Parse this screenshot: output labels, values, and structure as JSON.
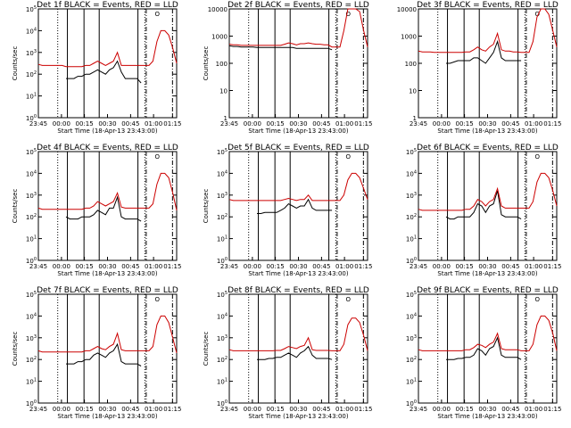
{
  "chart_data": [
    {
      "type": "line",
      "title": "Det 1f  BLACK = Events, RED = LLD",
      "xlabel": "Start Time (18-Apr-13 23:43:00)",
      "ylabel": "Counts/sec",
      "ylim_exp": [
        0,
        5
      ],
      "ytick_labels": [
        "10^0",
        "10^1",
        "10^2",
        "10^3",
        "10^4",
        "10^5"
      ],
      "series": [
        {
          "color": "#000000",
          "values": [
            null,
            null,
            null,
            null,
            null,
            null,
            null,
            1.8,
            1.8,
            1.8,
            1.9,
            1.9,
            2.0,
            2.0,
            2.1,
            2.2,
            2.1,
            2.0,
            2.2,
            2.3,
            2.6,
            2.1,
            1.8,
            1.8,
            1.8,
            1.8,
            1.6,
            null,
            null,
            null,
            null,
            null,
            null,
            null,
            null,
            null
          ]
        },
        {
          "color": "#cc0000",
          "values": [
            2.45,
            2.4,
            2.4,
            2.4,
            2.4,
            2.4,
            2.4,
            2.35,
            2.35,
            2.35,
            2.35,
            2.35,
            2.4,
            2.4,
            2.5,
            2.6,
            2.5,
            2.4,
            2.5,
            2.6,
            3.0,
            2.4,
            2.4,
            2.4,
            2.4,
            2.4,
            2.4,
            2.4,
            2.4,
            2.6,
            3.5,
            4.0,
            4.0,
            3.8,
            3.2,
            2.5
          ]
        }
      ]
    },
    {
      "type": "line",
      "title": "Det 2f  BLACK = Events, RED = LLD",
      "xlabel": "Start Time (18-Apr-13 23:43:00)",
      "ylabel": "Counts/sec",
      "ylim_exp": [
        0,
        4
      ],
      "ytick_labels": [
        "1",
        "10",
        "100",
        "1000",
        "10000"
      ],
      "series": [
        {
          "color": "#000000",
          "values": [
            2.65,
            2.62,
            2.62,
            2.6,
            2.6,
            2.6,
            2.6,
            2.58,
            2.58,
            2.58,
            2.58,
            2.58,
            2.58,
            2.58,
            2.58,
            2.58,
            2.58,
            2.55,
            2.55,
            2.55,
            2.55,
            2.55,
            2.55,
            2.55,
            2.55,
            2.55,
            2.5,
            null,
            null,
            null,
            null,
            null,
            null,
            null,
            null,
            null
          ]
        },
        {
          "color": "#cc0000",
          "values": [
            2.7,
            2.68,
            2.68,
            2.66,
            2.66,
            2.66,
            2.66,
            2.66,
            2.66,
            2.66,
            2.66,
            2.66,
            2.66,
            2.66,
            2.7,
            2.75,
            2.72,
            2.68,
            2.72,
            2.72,
            2.75,
            2.72,
            2.7,
            2.7,
            2.68,
            2.68,
            2.6,
            2.6,
            2.6,
            3.2,
            4.0,
            4.2,
            4.2,
            3.9,
            3.2,
            2.6
          ]
        }
      ]
    },
    {
      "type": "line",
      "title": "Det 3f  BLACK = Events, RED = LLD",
      "xlabel": "Start Time (18-Apr-13 23:43:00)",
      "ylabel": "",
      "ylim_exp": [
        0,
        4
      ],
      "ytick_labels": [
        "1",
        "10",
        "100",
        "1000",
        "10000"
      ],
      "series": [
        {
          "color": "#000000",
          "values": [
            null,
            null,
            null,
            null,
            null,
            null,
            null,
            2.0,
            2.0,
            2.05,
            2.1,
            2.1,
            2.1,
            2.1,
            2.2,
            2.2,
            2.1,
            2.0,
            2.2,
            2.4,
            2.8,
            2.2,
            2.1,
            2.1,
            2.1,
            2.1,
            2.1,
            null,
            null,
            null,
            null,
            null,
            null,
            null,
            null,
            null
          ]
        },
        {
          "color": "#cc0000",
          "values": [
            2.45,
            2.42,
            2.42,
            2.42,
            2.4,
            2.4,
            2.4,
            2.4,
            2.4,
            2.4,
            2.4,
            2.4,
            2.42,
            2.42,
            2.5,
            2.6,
            2.5,
            2.45,
            2.6,
            2.7,
            3.1,
            2.5,
            2.45,
            2.45,
            2.42,
            2.42,
            2.4,
            2.4,
            2.4,
            2.8,
            3.7,
            4.1,
            4.1,
            3.8,
            3.2,
            2.6
          ]
        }
      ]
    },
    {
      "type": "line",
      "title": "Det 4f  BLACK = Events, RED = LLD",
      "xlabel": "Start Time (18-Apr-13 23:43:00)",
      "ylabel": "Counts/sec",
      "ylim_exp": [
        0,
        5
      ],
      "ytick_labels": [
        "10^0",
        "10^1",
        "10^2",
        "10^3",
        "10^4",
        "10^5"
      ],
      "series": [
        {
          "color": "#000000",
          "values": [
            null,
            null,
            null,
            null,
            null,
            null,
            null,
            2.0,
            1.9,
            1.9,
            1.9,
            2.0,
            2.0,
            2.0,
            2.1,
            2.3,
            2.2,
            2.1,
            2.4,
            2.4,
            2.9,
            2.0,
            1.9,
            1.9,
            1.9,
            1.9,
            1.8,
            null,
            null,
            null,
            null,
            null,
            null,
            null,
            null,
            null
          ]
        },
        {
          "color": "#cc0000",
          "values": [
            2.4,
            2.35,
            2.35,
            2.35,
            2.35,
            2.35,
            2.35,
            2.35,
            2.35,
            2.35,
            2.35,
            2.35,
            2.4,
            2.4,
            2.5,
            2.7,
            2.6,
            2.5,
            2.6,
            2.7,
            3.1,
            2.45,
            2.4,
            2.4,
            2.4,
            2.4,
            2.4,
            2.4,
            2.4,
            2.6,
            3.5,
            4.0,
            4.0,
            3.8,
            3.1,
            2.3
          ]
        }
      ]
    },
    {
      "type": "line",
      "title": "Det 5f  BLACK = Events, RED = LLD",
      "xlabel": "Start Time (18-Apr-13 23:43:00)",
      "ylabel": "Counts/sec",
      "ylim_exp": [
        0,
        5
      ],
      "ytick_labels": [
        "10^0",
        "10^1",
        "10^2",
        "10^3",
        "10^4",
        "10^5"
      ],
      "series": [
        {
          "color": "#000000",
          "values": [
            null,
            null,
            null,
            null,
            null,
            null,
            null,
            2.15,
            2.15,
            2.2,
            2.2,
            2.2,
            2.2,
            2.3,
            2.4,
            2.6,
            2.5,
            2.4,
            2.5,
            2.5,
            2.8,
            2.4,
            2.3,
            2.3,
            2.3,
            2.3,
            2.3,
            null,
            null,
            null,
            null,
            null,
            null,
            null,
            null,
            null
          ]
        },
        {
          "color": "#cc0000",
          "values": [
            2.8,
            2.75,
            2.75,
            2.75,
            2.75,
            2.75,
            2.75,
            2.75,
            2.75,
            2.75,
            2.75,
            2.75,
            2.75,
            2.75,
            2.8,
            2.85,
            2.8,
            2.75,
            2.8,
            2.8,
            3.0,
            2.75,
            2.75,
            2.75,
            2.75,
            2.75,
            2.75,
            2.75,
            2.75,
            3.0,
            3.7,
            4.0,
            4.0,
            3.8,
            3.3,
            2.8
          ]
        }
      ]
    },
    {
      "type": "line",
      "title": "Det 6f  BLACK = Events, RED = LLD",
      "xlabel": "Start Time (18-Apr-13 23:43:00)",
      "ylabel": "",
      "ylim_exp": [
        0,
        5
      ],
      "ytick_labels": [
        "10^0",
        "10^1",
        "10^2",
        "10^3",
        "10^4",
        "10^5"
      ],
      "series": [
        {
          "color": "#000000",
          "values": [
            null,
            null,
            null,
            null,
            null,
            null,
            null,
            2.0,
            1.9,
            1.9,
            2.0,
            2.0,
            2.0,
            2.0,
            2.2,
            2.6,
            2.5,
            2.2,
            2.5,
            2.6,
            3.2,
            2.1,
            2.0,
            2.0,
            2.0,
            2.0,
            1.9,
            null,
            null,
            null,
            null,
            null,
            null,
            null,
            null,
            null
          ]
        },
        {
          "color": "#cc0000",
          "values": [
            2.35,
            2.3,
            2.3,
            2.3,
            2.3,
            2.3,
            2.3,
            2.3,
            2.3,
            2.3,
            2.3,
            2.3,
            2.35,
            2.35,
            2.5,
            2.8,
            2.7,
            2.5,
            2.7,
            2.8,
            3.3,
            2.5,
            2.4,
            2.4,
            2.4,
            2.4,
            2.4,
            2.4,
            2.4,
            2.7,
            3.6,
            4.0,
            4.0,
            3.8,
            3.2,
            2.5
          ]
        }
      ]
    },
    {
      "type": "line",
      "title": "Det 7f  BLACK = Events, RED = LLD",
      "xlabel": "Start Time (18-Apr-13 23:43:00)",
      "ylabel": "Counts/sec",
      "ylim_exp": [
        0,
        5
      ],
      "ytick_labels": [
        "10^0",
        "10^1",
        "10^2",
        "10^3",
        "10^4",
        "10^5"
      ],
      "series": [
        {
          "color": "#000000",
          "values": [
            null,
            null,
            null,
            null,
            null,
            null,
            null,
            1.8,
            1.8,
            1.8,
            1.9,
            1.9,
            2.0,
            2.0,
            2.2,
            2.3,
            2.2,
            2.1,
            2.3,
            2.4,
            2.7,
            1.9,
            1.8,
            1.8,
            1.8,
            1.8,
            1.7,
            null,
            null,
            null,
            null,
            null,
            null,
            null,
            null,
            null
          ]
        },
        {
          "color": "#cc0000",
          "values": [
            2.4,
            2.35,
            2.35,
            2.35,
            2.35,
            2.35,
            2.35,
            2.35,
            2.35,
            2.35,
            2.35,
            2.35,
            2.4,
            2.4,
            2.5,
            2.6,
            2.5,
            2.45,
            2.6,
            2.7,
            3.2,
            2.45,
            2.4,
            2.4,
            2.4,
            2.4,
            2.4,
            2.4,
            2.4,
            2.6,
            3.6,
            4.0,
            4.0,
            3.7,
            3.0,
            2.3
          ]
        }
      ]
    },
    {
      "type": "line",
      "title": "Det 8f  BLACK = Events, RED = LLD",
      "xlabel": "Start Time (18-Apr-13 23:43:00)",
      "ylabel": "Counts/sec",
      "ylim_exp": [
        0,
        5
      ],
      "ytick_labels": [
        "10^0",
        "10^1",
        "10^2",
        "10^3",
        "10^4",
        "10^5"
      ],
      "series": [
        {
          "color": "#000000",
          "values": [
            null,
            null,
            null,
            null,
            null,
            null,
            null,
            2.0,
            2.0,
            2.0,
            2.05,
            2.05,
            2.1,
            2.1,
            2.2,
            2.3,
            2.2,
            2.1,
            2.3,
            2.4,
            2.6,
            2.2,
            2.05,
            2.05,
            2.05,
            2.05,
            2.0,
            null,
            null,
            null,
            null,
            null,
            null,
            null,
            null,
            null
          ]
        },
        {
          "color": "#cc0000",
          "values": [
            2.45,
            2.4,
            2.4,
            2.4,
            2.4,
            2.4,
            2.4,
            2.4,
            2.4,
            2.4,
            2.4,
            2.4,
            2.42,
            2.42,
            2.5,
            2.6,
            2.55,
            2.5,
            2.6,
            2.65,
            3.0,
            2.45,
            2.42,
            2.42,
            2.42,
            2.42,
            2.4,
            2.4,
            2.4,
            2.7,
            3.6,
            3.9,
            3.9,
            3.7,
            3.1,
            2.4
          ]
        }
      ]
    },
    {
      "type": "line",
      "title": "Det 9f  BLACK = Events, RED = LLD",
      "xlabel": "Start Time (18-Apr-13 23:43:00)",
      "ylabel": "",
      "ylim_exp": [
        0,
        5
      ],
      "ytick_labels": [
        "10^0",
        "10^1",
        "10^2",
        "10^3",
        "10^4",
        "10^5"
      ],
      "series": [
        {
          "color": "#000000",
          "values": [
            null,
            null,
            null,
            null,
            null,
            null,
            null,
            2.0,
            2.0,
            2.0,
            2.05,
            2.05,
            2.1,
            2.1,
            2.2,
            2.5,
            2.4,
            2.2,
            2.5,
            2.6,
            3.0,
            2.2,
            2.1,
            2.1,
            2.1,
            2.1,
            2.0,
            null,
            null,
            null,
            null,
            null,
            null,
            null,
            null,
            null
          ]
        },
        {
          "color": "#cc0000",
          "values": [
            2.45,
            2.4,
            2.4,
            2.4,
            2.4,
            2.4,
            2.4,
            2.4,
            2.4,
            2.4,
            2.4,
            2.4,
            2.45,
            2.45,
            2.55,
            2.7,
            2.65,
            2.55,
            2.7,
            2.8,
            3.2,
            2.5,
            2.45,
            2.45,
            2.45,
            2.45,
            2.4,
            2.4,
            2.4,
            2.7,
            3.6,
            4.0,
            4.0,
            3.8,
            3.2,
            2.4
          ]
        }
      ]
    }
  ],
  "x_tick_labels": [
    "23:45",
    "00:00",
    "00:15",
    "00:30",
    "00:45",
    "01:00",
    "01:15"
  ],
  "marker_label": "O"
}
